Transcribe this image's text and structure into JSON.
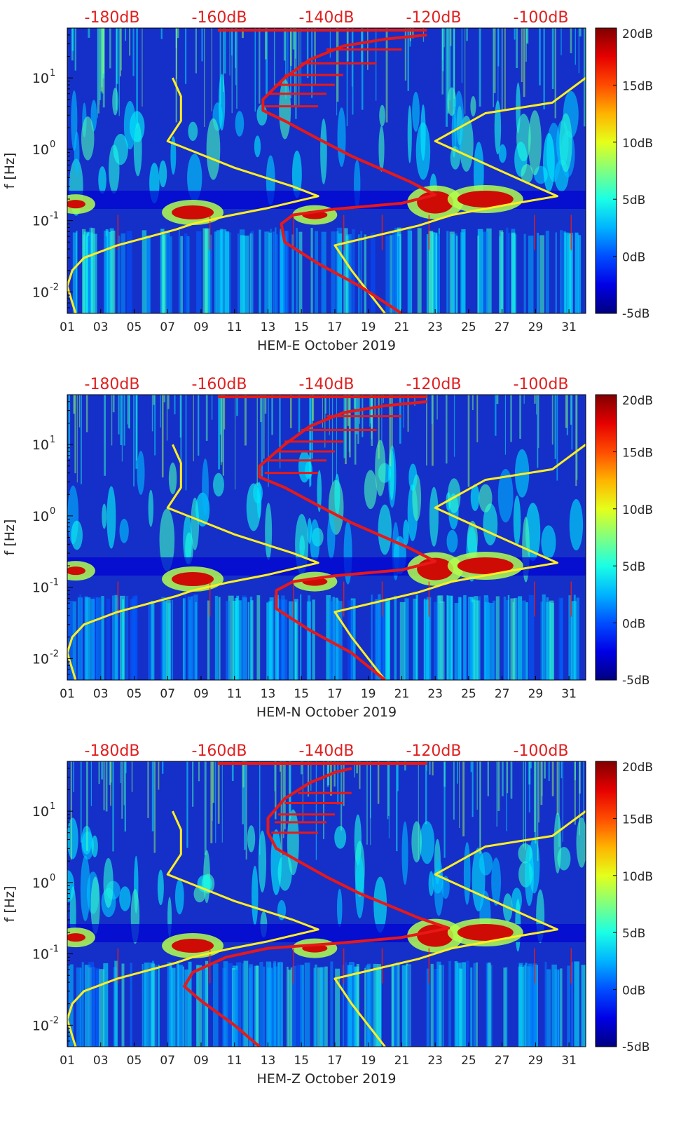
{
  "figure": {
    "type": "multi-panel spectrogram"
  },
  "colorbar": {
    "ticks": [
      "20dB",
      "15dB",
      "10dB",
      "5dB",
      "0dB",
      "-5dB"
    ],
    "values": [
      20,
      15,
      10,
      5,
      0,
      -5
    ],
    "range": [
      -5,
      20
    ],
    "colormap": "jet"
  },
  "top_axis": {
    "ticks": [
      "-180dB",
      "-160dB",
      "-140dB",
      "-120dB",
      "-100dB"
    ],
    "values": [
      -180,
      -160,
      -140,
      -120,
      -100
    ],
    "color": "#e02020"
  },
  "x_axis": {
    "ticks": [
      "01",
      "03",
      "05",
      "07",
      "09",
      "11",
      "13",
      "15",
      "17",
      "19",
      "21",
      "23",
      "25",
      "27",
      "29",
      "31"
    ],
    "range_days": [
      1,
      32
    ]
  },
  "y_axis": {
    "label": "f [Hz]",
    "ticks": [
      "10^-2",
      "10^-1",
      "10^0",
      "10^1"
    ],
    "scale": "log",
    "range_hz": [
      0.005,
      50
    ]
  },
  "colors": {
    "yellow_curve": "#ffee22",
    "red_curve": "#e81818",
    "background_blue": "#1530c8"
  },
  "chart_data": [
    {
      "type": "heatmap",
      "xlabel": "HEM-E October 2019",
      "ylabel": "f [Hz]",
      "x_range": [
        1,
        32
      ],
      "y_scale": "log",
      "yellow_curve": [
        {
          "x": 7.3,
          "f": 10
        },
        {
          "x": 7.8,
          "f": 5.5
        },
        {
          "x": 7.8,
          "f": 2.5
        },
        {
          "x": 7.0,
          "f": 1.3
        },
        {
          "x": 11.0,
          "f": 0.55
        },
        {
          "x": 14.5,
          "f": 0.3
        },
        {
          "x": 16.0,
          "f": 0.22
        },
        {
          "x": 13.0,
          "f": 0.15
        },
        {
          "x": 10.5,
          "f": 0.115
        },
        {
          "x": 8.5,
          "f": 0.09
        },
        {
          "x": 7.5,
          "f": 0.075
        },
        {
          "x": 4.0,
          "f": 0.045
        },
        {
          "x": 2.0,
          "f": 0.03
        },
        {
          "x": 1.3,
          "f": 0.02
        },
        {
          "x": 1.0,
          "f": 0.012
        },
        {
          "x": 1.5,
          "f": 0.005
        }
      ],
      "yellow_curve_2": [
        {
          "x": 32.0,
          "f": 10
        },
        {
          "x": 30.0,
          "f": 4.5
        },
        {
          "x": 26.0,
          "f": 3.2
        },
        {
          "x": 23.0,
          "f": 1.3
        },
        {
          "x": 26.5,
          "f": 0.55
        },
        {
          "x": 29.0,
          "f": 0.3
        },
        {
          "x": 30.3,
          "f": 0.22
        },
        {
          "x": 27.5,
          "f": 0.17
        },
        {
          "x": 24.0,
          "f": 0.12
        },
        {
          "x": 22.0,
          "f": 0.085
        },
        {
          "x": 17.0,
          "f": 0.045
        },
        {
          "x": 18.0,
          "f": 0.02
        },
        {
          "x": 20.0,
          "f": 0.005
        }
      ],
      "red_curve": [
        {
          "x": 22.5,
          "f": 40
        },
        {
          "x": 20.0,
          "f": 35
        },
        {
          "x": 17.5,
          "f": 28
        },
        {
          "x": 15.5,
          "f": 18
        },
        {
          "x": 14.0,
          "f": 10
        },
        {
          "x": 12.7,
          "f": 5
        },
        {
          "x": 12.7,
          "f": 3.5
        },
        {
          "x": 14.0,
          "f": 2.5
        },
        {
          "x": 16.0,
          "f": 1.4
        },
        {
          "x": 18.0,
          "f": 0.8
        },
        {
          "x": 20.0,
          "f": 0.5
        },
        {
          "x": 21.5,
          "f": 0.35
        },
        {
          "x": 23.0,
          "f": 0.23
        },
        {
          "x": 21.0,
          "f": 0.175
        },
        {
          "x": 17.0,
          "f": 0.145
        },
        {
          "x": 14.5,
          "f": 0.12
        },
        {
          "x": 13.8,
          "f": 0.09
        },
        {
          "x": 14.0,
          "f": 0.05
        },
        {
          "x": 16.0,
          "f": 0.025
        },
        {
          "x": 18.5,
          "f": 0.012
        },
        {
          "x": 21.0,
          "f": 0.005
        }
      ]
    },
    {
      "type": "heatmap",
      "xlabel": "HEM-N October 2019",
      "ylabel": "f [Hz]",
      "x_range": [
        1,
        32
      ],
      "y_scale": "log",
      "yellow_curve": [
        {
          "x": 7.3,
          "f": 10
        },
        {
          "x": 7.8,
          "f": 5.5
        },
        {
          "x": 7.8,
          "f": 2.5
        },
        {
          "x": 7.0,
          "f": 1.3
        },
        {
          "x": 11.0,
          "f": 0.55
        },
        {
          "x": 14.5,
          "f": 0.3
        },
        {
          "x": 16.0,
          "f": 0.22
        },
        {
          "x": 13.0,
          "f": 0.15
        },
        {
          "x": 10.5,
          "f": 0.115
        },
        {
          "x": 8.5,
          "f": 0.09
        },
        {
          "x": 7.5,
          "f": 0.075
        },
        {
          "x": 4.0,
          "f": 0.045
        },
        {
          "x": 2.0,
          "f": 0.03
        },
        {
          "x": 1.3,
          "f": 0.02
        },
        {
          "x": 1.0,
          "f": 0.012
        },
        {
          "x": 1.5,
          "f": 0.005
        }
      ],
      "yellow_curve_2": [
        {
          "x": 32.0,
          "f": 10
        },
        {
          "x": 30.0,
          "f": 4.5
        },
        {
          "x": 26.0,
          "f": 3.2
        },
        {
          "x": 23.0,
          "f": 1.3
        },
        {
          "x": 26.5,
          "f": 0.55
        },
        {
          "x": 29.0,
          "f": 0.3
        },
        {
          "x": 30.3,
          "f": 0.22
        },
        {
          "x": 27.5,
          "f": 0.17
        },
        {
          "x": 24.0,
          "f": 0.12
        },
        {
          "x": 22.0,
          "f": 0.085
        },
        {
          "x": 17.0,
          "f": 0.045
        },
        {
          "x": 18.0,
          "f": 0.02
        },
        {
          "x": 20.0,
          "f": 0.005
        }
      ],
      "red_curve": [
        {
          "x": 22.5,
          "f": 40
        },
        {
          "x": 20.0,
          "f": 35
        },
        {
          "x": 17.5,
          "f": 28
        },
        {
          "x": 15.5,
          "f": 18
        },
        {
          "x": 14.0,
          "f": 10
        },
        {
          "x": 12.5,
          "f": 5
        },
        {
          "x": 12.5,
          "f": 3.5
        },
        {
          "x": 14.0,
          "f": 2.5
        },
        {
          "x": 16.0,
          "f": 1.4
        },
        {
          "x": 18.0,
          "f": 0.8
        },
        {
          "x": 20.0,
          "f": 0.5
        },
        {
          "x": 21.5,
          "f": 0.35
        },
        {
          "x": 23.0,
          "f": 0.23
        },
        {
          "x": 21.0,
          "f": 0.175
        },
        {
          "x": 17.0,
          "f": 0.145
        },
        {
          "x": 14.5,
          "f": 0.12
        },
        {
          "x": 13.5,
          "f": 0.09
        },
        {
          "x": 13.5,
          "f": 0.05
        },
        {
          "x": 15.5,
          "f": 0.025
        },
        {
          "x": 18.0,
          "f": 0.012
        },
        {
          "x": 20.0,
          "f": 0.005
        }
      ]
    },
    {
      "type": "heatmap",
      "xlabel": "HEM-Z October 2019",
      "ylabel": "f [Hz]",
      "x_range": [
        1,
        32
      ],
      "y_scale": "log",
      "yellow_curve": [
        {
          "x": 7.3,
          "f": 10
        },
        {
          "x": 7.8,
          "f": 5.5
        },
        {
          "x": 7.8,
          "f": 2.5
        },
        {
          "x": 7.0,
          "f": 1.3
        },
        {
          "x": 11.0,
          "f": 0.55
        },
        {
          "x": 14.5,
          "f": 0.3
        },
        {
          "x": 16.0,
          "f": 0.22
        },
        {
          "x": 13.0,
          "f": 0.15
        },
        {
          "x": 10.5,
          "f": 0.115
        },
        {
          "x": 8.5,
          "f": 0.09
        },
        {
          "x": 7.5,
          "f": 0.075
        },
        {
          "x": 4.0,
          "f": 0.045
        },
        {
          "x": 2.0,
          "f": 0.03
        },
        {
          "x": 1.3,
          "f": 0.02
        },
        {
          "x": 1.0,
          "f": 0.012
        },
        {
          "x": 1.5,
          "f": 0.005
        }
      ],
      "yellow_curve_2": [
        {
          "x": 32.0,
          "f": 10
        },
        {
          "x": 30.0,
          "f": 4.5
        },
        {
          "x": 26.0,
          "f": 3.2
        },
        {
          "x": 23.0,
          "f": 1.3
        },
        {
          "x": 26.5,
          "f": 0.55
        },
        {
          "x": 29.0,
          "f": 0.3
        },
        {
          "x": 30.3,
          "f": 0.22
        },
        {
          "x": 27.5,
          "f": 0.17
        },
        {
          "x": 24.0,
          "f": 0.12
        },
        {
          "x": 22.0,
          "f": 0.085
        },
        {
          "x": 17.0,
          "f": 0.045
        },
        {
          "x": 18.0,
          "f": 0.02
        },
        {
          "x": 20.0,
          "f": 0.005
        }
      ],
      "red_curve": [
        {
          "x": 18.0,
          "f": 40
        },
        {
          "x": 17.0,
          "f": 35
        },
        {
          "x": 15.5,
          "f": 25
        },
        {
          "x": 14.0,
          "f": 15
        },
        {
          "x": 13.0,
          "f": 8
        },
        {
          "x": 13.0,
          "f": 5
        },
        {
          "x": 13.5,
          "f": 3
        },
        {
          "x": 14.5,
          "f": 2.2
        },
        {
          "x": 16.5,
          "f": 1.2
        },
        {
          "x": 18.5,
          "f": 0.7
        },
        {
          "x": 20.5,
          "f": 0.45
        },
        {
          "x": 22.0,
          "f": 0.32
        },
        {
          "x": 23.8,
          "f": 0.23
        },
        {
          "x": 21.0,
          "f": 0.17
        },
        {
          "x": 17.0,
          "f": 0.14
        },
        {
          "x": 13.0,
          "f": 0.12
        },
        {
          "x": 10.5,
          "f": 0.09
        },
        {
          "x": 8.5,
          "f": 0.055
        },
        {
          "x": 8.0,
          "f": 0.035
        },
        {
          "x": 9.0,
          "f": 0.022
        },
        {
          "x": 11.0,
          "f": 0.01
        },
        {
          "x": 12.5,
          "f": 0.005
        }
      ]
    }
  ]
}
